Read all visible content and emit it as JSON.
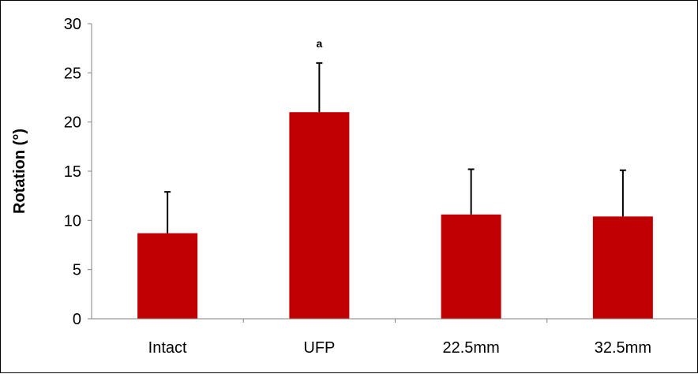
{
  "chart_data": {
    "type": "bar",
    "categories": [
      "Intact",
      "UFP",
      "22.5mm",
      "32.5mm"
    ],
    "values": [
      8.7,
      21.0,
      10.6,
      10.4
    ],
    "error_upper": [
      4.2,
      5.0,
      4.6,
      4.7
    ],
    "annotations": [
      "",
      "a",
      "",
      ""
    ],
    "ylabel": "Rotation (°)",
    "ylim": [
      0,
      30
    ],
    "yticks": [
      0,
      5,
      10,
      15,
      20,
      25,
      30
    ],
    "grid": false,
    "legend": "none",
    "bar_color": "#c00000",
    "error_bar_color": "#000000"
  }
}
